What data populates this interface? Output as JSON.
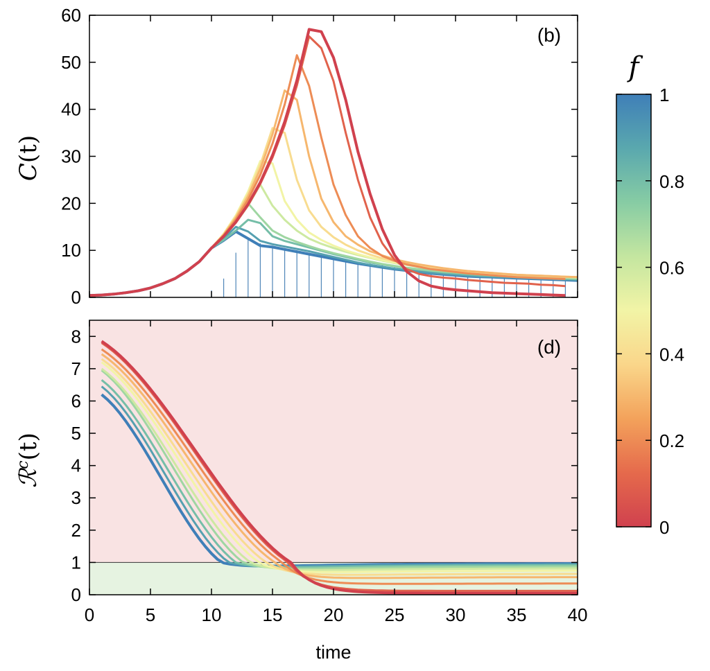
{
  "colorbar": {
    "title": "f",
    "ticks": [
      "0",
      "0.2",
      "0.4",
      "0.6",
      "0.8",
      "1"
    ],
    "stops": [
      "#d0414e",
      "#e56a4c",
      "#f3a25b",
      "#fad68a",
      "#f2f4a6",
      "#c4e6a0",
      "#87cca4",
      "#5aa8ae",
      "#3f7fb8"
    ]
  },
  "f_values": [
    0,
    0.1,
    0.2,
    0.3,
    0.4,
    0.5,
    0.6,
    0.7,
    0.8,
    0.9,
    1.0
  ],
  "chart_data": [
    {
      "type": "line",
      "panel_label": "(b)",
      "title": "",
      "xlabel": "time",
      "ylabel_main": "C",
      "ylabel_arg": "(t)",
      "xlim": [
        0,
        40
      ],
      "ylim": [
        0,
        60
      ],
      "xticks": [
        "0",
        "5",
        "10",
        "15",
        "20",
        "25",
        "30",
        "35",
        "40"
      ],
      "yticks": [
        "0",
        "10",
        "20",
        "30",
        "40",
        "50",
        "60"
      ],
      "x": [
        0,
        1,
        2,
        3,
        4,
        5,
        6,
        7,
        8,
        9,
        10,
        11,
        12,
        13,
        14,
        15,
        16,
        17,
        18,
        19,
        20,
        21,
        22,
        23,
        24,
        25,
        26,
        27,
        28,
        29,
        30,
        31,
        32,
        33,
        34,
        35,
        36,
        37,
        38,
        39,
        40
      ],
      "base": [
        0.4,
        0.5,
        0.7,
        1.0,
        1.4,
        2.0,
        2.9,
        4.0,
        5.6,
        7.6,
        10.5
      ],
      "peaks": [
        {
          "f": 0.0,
          "peak_t": 18,
          "peak_val": 57,
          "after": [
            56.5,
            51,
            42,
            31,
            22,
            14.5,
            9,
            5.5,
            3.5,
            2.4,
            1.9,
            1.6,
            1.4,
            1.2,
            1.0,
            0.9,
            0.8,
            0.7,
            0.6,
            0.5,
            0.4
          ]
        },
        {
          "f": 0.1,
          "peak_t": 18,
          "peak_val": 55.5,
          "after": [
            53,
            46,
            35,
            25,
            17,
            11.5,
            8,
            6,
            5,
            4.5,
            4.2,
            4.0,
            3.7,
            3.5,
            3.3,
            3.1,
            3.0,
            2.9,
            2.7,
            2.6,
            2.4
          ]
        },
        {
          "f": 0.2,
          "peak_t": 17,
          "peak_val": 51.5,
          "after": [
            45,
            34,
            24,
            17.5,
            13,
            10.5,
            8.8,
            7.8,
            7,
            6.5,
            6,
            5.7,
            5.4,
            5.1,
            4.9,
            4.7,
            4.5,
            4.3,
            4.2,
            4.1,
            4.0,
            3.9
          ]
        },
        {
          "f": 0.3,
          "peak_t": 16,
          "peak_val": 44,
          "after": [
            42,
            30,
            21,
            16,
            13,
            11.2,
            9.8,
            8.9,
            8.1,
            7.5,
            7,
            6.6,
            6.2,
            5.9,
            5.6,
            5.4,
            5.2,
            5,
            4.8,
            4.7,
            4.6,
            4.5,
            4.4,
            4.3
          ]
        },
        {
          "f": 0.4,
          "peak_t": 15,
          "peak_val": 36,
          "after": [
            35,
            25,
            18.5,
            15,
            12.8,
            11.2,
            10,
            9.1,
            8.3,
            7.7,
            7.2,
            6.8,
            6.4,
            6.1,
            5.8,
            5.6,
            5.4,
            5.2,
            5,
            4.8,
            4.7,
            4.6,
            4.5,
            4.4,
            4.3
          ]
        },
        {
          "f": 0.5,
          "peak_t": 14,
          "peak_val": 29,
          "after": [
            28.5,
            20.5,
            16.5,
            13.8,
            12.2,
            11,
            10,
            9.2,
            8.5,
            7.9,
            7.4,
            7,
            6.6,
            6.2,
            5.9,
            5.7,
            5.5,
            5.3,
            5.1,
            4.9,
            4.8,
            4.7,
            4.6,
            4.5,
            4.4,
            4.3
          ]
        },
        {
          "f": 0.6,
          "peak_t": 14,
          "peak_val": 24,
          "after": [
            19.5,
            16.5,
            14.2,
            12.5,
            11.4,
            10.5,
            9.7,
            9,
            8.4,
            7.8,
            7.3,
            6.9,
            6.5,
            6.2,
            5.9,
            5.6,
            5.4,
            5.2,
            5,
            4.8,
            4.7,
            4.6,
            4.5,
            4.4,
            4.3,
            4.2
          ]
        },
        {
          "f": 0.7,
          "peak_t": 13,
          "peak_val": 20,
          "after": [
            17,
            14.2,
            12.8,
            11.8,
            10.9,
            10.1,
            9.4,
            8.8,
            8.2,
            7.6,
            7.1,
            6.7,
            6.3,
            6,
            5.7,
            5.5,
            5.3,
            5.1,
            4.9,
            4.7,
            4.6,
            4.5,
            4.4,
            4.3,
            4.2,
            4.1,
            4.0
          ]
        },
        {
          "f": 0.8,
          "peak_t": 13,
          "peak_val": 16.5,
          "after": [
            15.8,
            13,
            12,
            11.3,
            10.6,
            9.9,
            9.2,
            8.6,
            8,
            7.4,
            7,
            6.6,
            6.2,
            5.9,
            5.6,
            5.3,
            5.1,
            4.9,
            4.7,
            4.6,
            4.5,
            4.4,
            4.3,
            4.2,
            4.1,
            4.0,
            3.9
          ]
        },
        {
          "f": 0.9,
          "peak_t": 12,
          "peak_val": 15,
          "after": [
            14,
            12,
            11.3,
            10.8,
            10.3,
            9.8,
            9.2,
            8.6,
            8,
            7.4,
            6.9,
            6.5,
            6.1,
            5.8,
            5.5,
            5.2,
            5,
            4.8,
            4.6,
            4.5,
            4.4,
            4.3,
            4.2,
            4.1,
            4.0,
            3.9,
            3.8,
            3.7
          ]
        },
        {
          "f": 1.0,
          "peak_t": 12,
          "peak_val": 14,
          "after": [
            12.5,
            11,
            10.7,
            10.2,
            9.7,
            9.2,
            8.7,
            8.2,
            7.7,
            7.2,
            6.8,
            6.4,
            6,
            5.7,
            5.4,
            5.1,
            4.9,
            4.7,
            4.5,
            4.4,
            4.3,
            4.2,
            4.1,
            4.0,
            3.9,
            3.8,
            3.7,
            3.6
          ]
        }
      ],
      "impulses": {
        "x": [
          10,
          11,
          12,
          13,
          14,
          15,
          16,
          17,
          18,
          19,
          20,
          21,
          22,
          23,
          24,
          25,
          26,
          27,
          28,
          29,
          30,
          31,
          32,
          33,
          34,
          35,
          36,
          37,
          38,
          39
        ],
        "values": [
          1.5,
          4,
          9.5,
          12.5,
          11.5,
          11,
          10.5,
          10,
          9.5,
          9,
          8.5,
          8,
          7.6,
          7.2,
          6.8,
          6.4,
          6,
          5.7,
          5.4,
          5.1,
          4.9,
          4.7,
          4.5,
          4.4,
          4.3,
          4.2,
          4.1,
          4.0,
          3.9,
          3.8
        ]
      }
    },
    {
      "type": "line",
      "panel_label": "(d)",
      "title": "",
      "xlabel": "time",
      "ylabel_main": "ℛ",
      "ylabel_sup": "c",
      "ylabel_arg": "(t)",
      "xlim": [
        0,
        40
      ],
      "ylim": [
        0,
        8.5
      ],
      "threshold": 1,
      "xticks": [
        "0",
        "5",
        "10",
        "15",
        "20",
        "25",
        "30",
        "35",
        "40"
      ],
      "yticks": [
        "0",
        "1",
        "2",
        "3",
        "4",
        "5",
        "6",
        "7",
        "8"
      ],
      "series": [
        {
          "f": 0.0,
          "start": 7.85,
          "cross_t": 16.5,
          "min_val": 0.05,
          "end_val": 0.05
        },
        {
          "f": 0.1,
          "start": 7.8,
          "cross_t": 16.3,
          "min_val": 0.12,
          "end_val": 0.12
        },
        {
          "f": 0.2,
          "start": 7.6,
          "cross_t": 15.8,
          "min_val": 0.3,
          "end_val": 0.35
        },
        {
          "f": 0.3,
          "start": 7.45,
          "cross_t": 15.2,
          "min_val": 0.45,
          "end_val": 0.55
        },
        {
          "f": 0.4,
          "start": 7.3,
          "cross_t": 14.5,
          "min_val": 0.55,
          "end_val": 0.65
        },
        {
          "f": 0.5,
          "start": 7.2,
          "cross_t": 13.9,
          "min_val": 0.62,
          "end_val": 0.75
        },
        {
          "f": 0.6,
          "start": 7.0,
          "cross_t": 13.2,
          "min_val": 0.68,
          "end_val": 0.82
        },
        {
          "f": 0.7,
          "start": 6.95,
          "cross_t": 12.6,
          "min_val": 0.72,
          "end_val": 0.88
        },
        {
          "f": 0.8,
          "start": 6.65,
          "cross_t": 12.0,
          "min_val": 0.76,
          "end_val": 0.92
        },
        {
          "f": 0.9,
          "start": 6.45,
          "cross_t": 11.4,
          "min_val": 0.78,
          "end_val": 0.95
        },
        {
          "f": 1.0,
          "start": 6.2,
          "cross_t": 10.8,
          "min_val": 0.8,
          "end_val": 0.97
        }
      ]
    }
  ]
}
